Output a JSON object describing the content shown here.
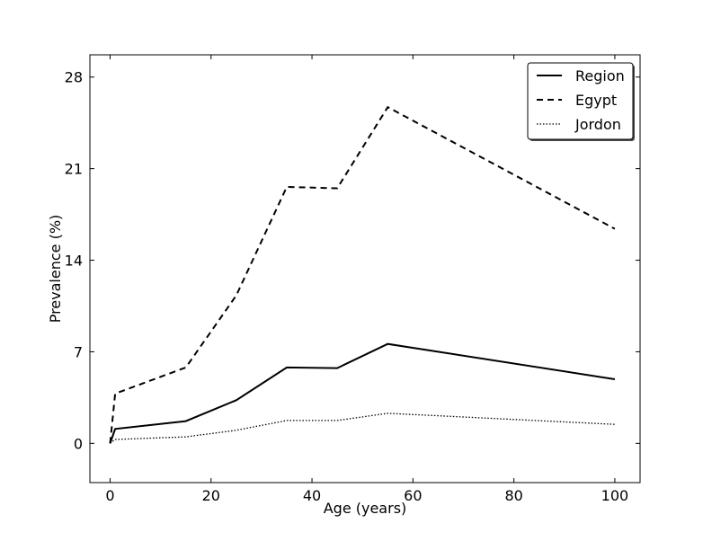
{
  "chart_data": {
    "type": "line",
    "title": "",
    "xlabel": "Age (years)",
    "ylabel": "Prevalence (%)",
    "xlim": [
      -4,
      105
    ],
    "ylim": [
      -3,
      29.7
    ],
    "xticks": [
      0,
      20,
      40,
      60,
      80,
      100
    ],
    "yticks": [
      0,
      7,
      14,
      21,
      28
    ],
    "grid": false,
    "legend_position": "top-right",
    "series": [
      {
        "name": "Region",
        "style": "solid",
        "color": "#000000",
        "x": [
          0,
          1,
          15,
          25,
          35,
          45,
          55,
          100
        ],
        "y": [
          0,
          1.1,
          1.7,
          3.3,
          5.8,
          5.75,
          7.6,
          4.9
        ]
      },
      {
        "name": "Egypt",
        "style": "dashed",
        "color": "#000000",
        "x": [
          0,
          1,
          15,
          25,
          35,
          45,
          55,
          100
        ],
        "y": [
          0,
          3.8,
          5.8,
          11.3,
          19.6,
          19.5,
          25.7,
          16.4
        ]
      },
      {
        "name": "Jordon",
        "style": "dotted",
        "color": "#000000",
        "x": [
          0,
          1,
          15,
          25,
          35,
          45,
          55,
          100
        ],
        "y": [
          0,
          0.3,
          0.5,
          1.0,
          1.75,
          1.75,
          2.3,
          1.45
        ]
      }
    ]
  }
}
